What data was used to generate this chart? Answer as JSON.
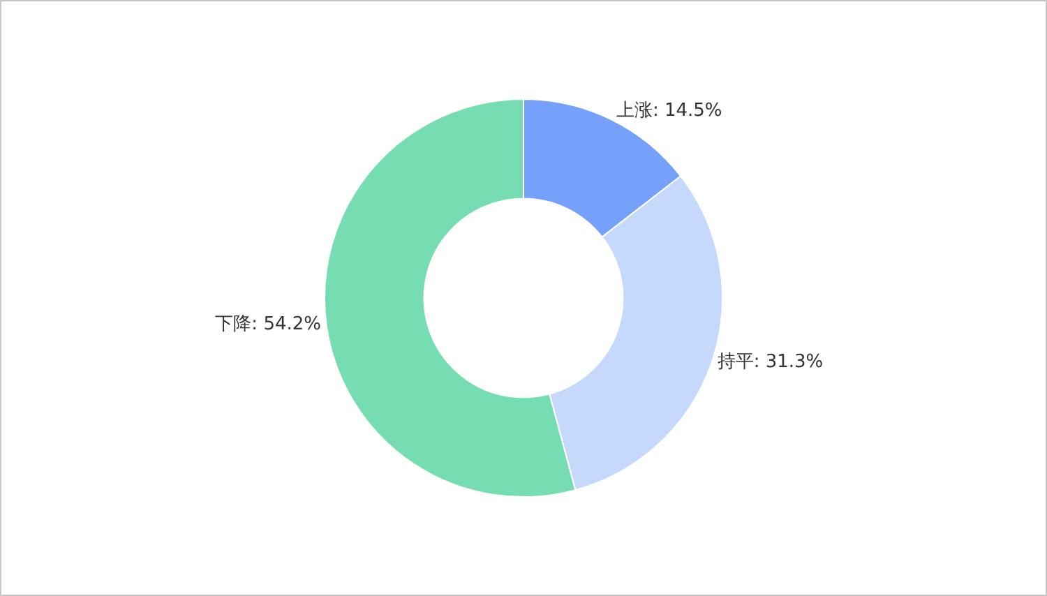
{
  "chart_data": {
    "type": "donut",
    "categories": [
      "上涨",
      "持平",
      "下降"
    ],
    "values": [
      14.5,
      31.3,
      54.2
    ],
    "value_labels": [
      "14.5%",
      "31.3%",
      "54.2%"
    ],
    "colors": [
      "#76a1fb",
      "#c6d8fb",
      "#76ddb3"
    ],
    "legend": false
  }
}
